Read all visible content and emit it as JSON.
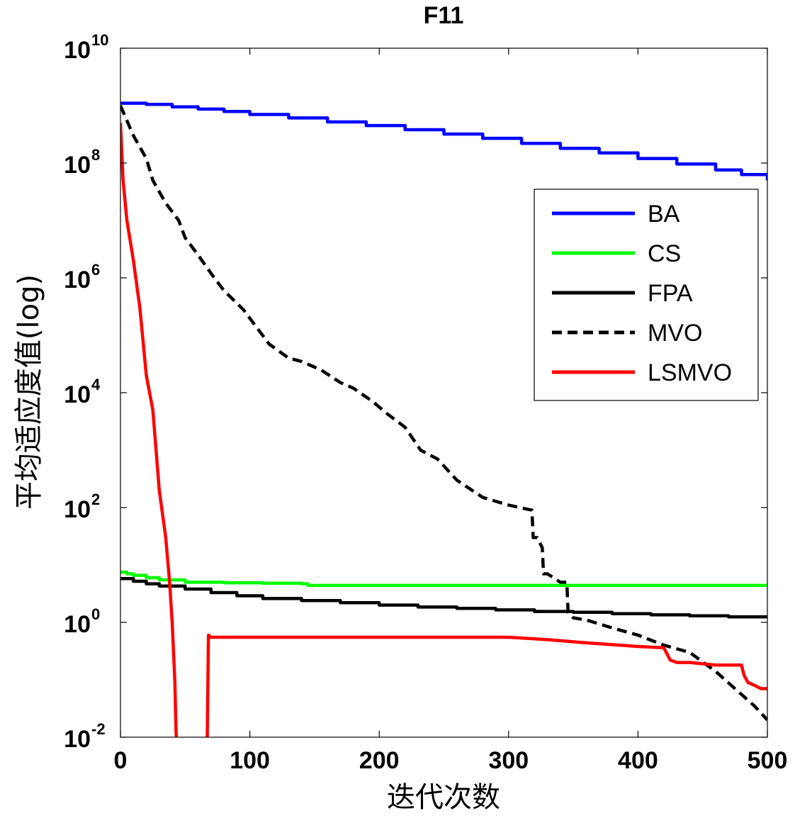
{
  "chart_data": {
    "type": "line",
    "title": "F11",
    "xlabel": "迭代次数",
    "ylabel": "平均适应度值(log)",
    "xlim": [
      0,
      500
    ],
    "ylim_log10": [
      -2,
      10
    ],
    "yscale": "log",
    "x_ticks": [
      0,
      100,
      200,
      300,
      400,
      500
    ],
    "x_tick_labels": [
      "0",
      "100",
      "200",
      "300",
      "400",
      "500"
    ],
    "y_tick_labels": [
      {
        "base": "10",
        "exp": "-2"
      },
      {
        "base": "10",
        "exp": "0"
      },
      {
        "base": "10",
        "exp": "2"
      },
      {
        "base": "10",
        "exp": "4"
      },
      {
        "base": "10",
        "exp": "6"
      },
      {
        "base": "10",
        "exp": "8"
      },
      {
        "base": "10",
        "exp": "10"
      }
    ],
    "grid": false,
    "legend_position": "right",
    "series": [
      {
        "name": "BA",
        "color": "#0000ff",
        "dash": "solid",
        "step": true,
        "x": [
          0,
          20,
          40,
          60,
          80,
          100,
          130,
          160,
          190,
          220,
          250,
          280,
          310,
          340,
          370,
          400,
          430,
          460,
          480,
          500
        ],
        "y": [
          1100000000.0,
          1050000000.0,
          950000000.0,
          870000000.0,
          790000000.0,
          700000000.0,
          610000000.0,
          520000000.0,
          450000000.0,
          380000000.0,
          320000000.0,
          270000000.0,
          220000000.0,
          180000000.0,
          150000000.0,
          120000000.0,
          96000000.0,
          76000000.0,
          63000000.0,
          50000000.0
        ]
      },
      {
        "name": "CS",
        "color": "#00ff00",
        "dash": "solid",
        "step": true,
        "x": [
          0,
          5,
          10,
          20,
          30,
          50,
          80,
          110,
          140,
          145,
          200,
          300,
          400,
          500
        ],
        "y": [
          7.5,
          7.0,
          6.6,
          6.0,
          5.5,
          5.0,
          4.9,
          4.8,
          4.7,
          4.4,
          4.4,
          4.4,
          4.4,
          4.4
        ]
      },
      {
        "name": "FPA",
        "color": "#000000",
        "dash": "solid",
        "step": true,
        "x": [
          0,
          10,
          20,
          30,
          50,
          70,
          90,
          110,
          140,
          170,
          200,
          230,
          260,
          290,
          320,
          350,
          380,
          410,
          440,
          470,
          500
        ],
        "y": [
          5.8,
          5.2,
          4.7,
          4.3,
          3.8,
          3.3,
          2.9,
          2.6,
          2.4,
          2.2,
          2.0,
          1.85,
          1.75,
          1.65,
          1.55,
          1.5,
          1.42,
          1.35,
          1.3,
          1.25,
          1.2
        ]
      },
      {
        "name": "MVO",
        "color": "#000000",
        "dash": "dashed",
        "step": false,
        "x": [
          0,
          10,
          20,
          25,
          35,
          45,
          50,
          60,
          70,
          80,
          95,
          105,
          115,
          130,
          140,
          155,
          170,
          180,
          195,
          205,
          220,
          232,
          245,
          260,
          280,
          300,
          318,
          319,
          322,
          326,
          327,
          330,
          340,
          345,
          346,
          350,
          360,
          380,
          400,
          420,
          440,
          460,
          475,
          490,
          500
        ],
        "y": [
          1000000000.0,
          300000000.0,
          120000000.0,
          50000000.0,
          20000000.0,
          10000000.0,
          5000000.0,
          2500000.0,
          1200000.0,
          600000.0,
          280000.0,
          140000.0,
          70000.0,
          40000.0,
          35000.0,
          25000.0,
          15000.0,
          12000.0,
          7000.0,
          4500.0,
          2500.0,
          1000.0,
          700.0,
          300.0,
          150.0,
          110.0,
          90.0,
          30.0,
          30.0,
          20.0,
          7.0,
          7.0,
          5.0,
          5.0,
          1.5,
          1.2,
          1.1,
          0.8,
          0.6,
          0.4,
          0.3,
          0.14,
          0.07,
          0.035,
          0.02
        ]
      },
      {
        "name": "LSMVO",
        "color": "#ff0000",
        "dash": "solid",
        "step": false,
        "x": [
          0,
          2,
          5,
          10,
          15,
          20,
          25,
          30,
          35,
          38,
          40,
          42,
          43,
          44,
          45,
          50,
          60,
          67,
          68,
          70,
          100,
          200,
          300,
          330,
          360,
          400,
          420,
          425,
          430,
          440,
          460,
          480,
          482,
          485,
          490,
          495,
          500
        ],
        "y": [
          500000000.0,
          50000000.0,
          10000000.0,
          2000000.0,
          300000.0,
          20000.0,
          5000.0,
          200.0,
          30.0,
          5.0,
          1.0,
          0.1,
          0.012,
          0.006,
          0.006,
          0.006,
          0.006,
          0.006,
          0.6,
          0.55,
          0.55,
          0.55,
          0.55,
          0.5,
          0.44,
          0.38,
          0.36,
          0.22,
          0.2,
          0.2,
          0.18,
          0.18,
          0.12,
          0.09,
          0.08,
          0.07,
          0.07
        ]
      }
    ]
  }
}
